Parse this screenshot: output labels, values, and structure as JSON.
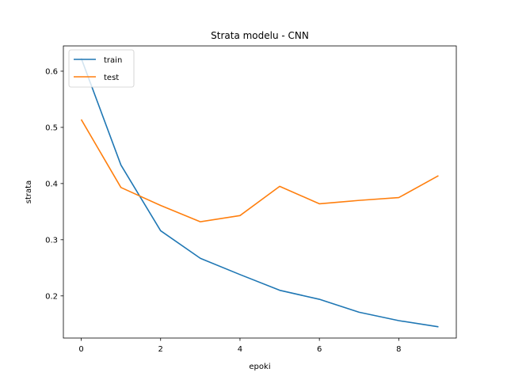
{
  "chart_data": {
    "type": "line",
    "title": "Strata modelu - CNN",
    "xlabel": "epoki",
    "ylabel": "strata",
    "x": [
      0,
      1,
      2,
      3,
      4,
      5,
      6,
      7,
      8,
      9
    ],
    "xlim": [
      -0.45,
      9.45
    ],
    "ylim": [
      0.125,
      0.645
    ],
    "xticks": [
      0,
      2,
      4,
      6,
      8
    ],
    "yticks": [
      0.2,
      0.3,
      0.4,
      0.5,
      0.6
    ],
    "ytick_labels": [
      "0.2",
      "0.3",
      "0.4",
      "0.5",
      "0.6"
    ],
    "grid": false,
    "legend_position": "top-left",
    "series": [
      {
        "name": "train",
        "color": "#1f77b4",
        "values": [
          0.623,
          0.433,
          0.316,
          0.267,
          0.238,
          0.21,
          0.194,
          0.171,
          0.156,
          0.145
        ]
      },
      {
        "name": "test",
        "color": "#ff7f0e",
        "values": [
          0.514,
          0.393,
          0.361,
          0.332,
          0.343,
          0.395,
          0.364,
          0.37,
          0.375,
          0.414
        ]
      }
    ]
  }
}
